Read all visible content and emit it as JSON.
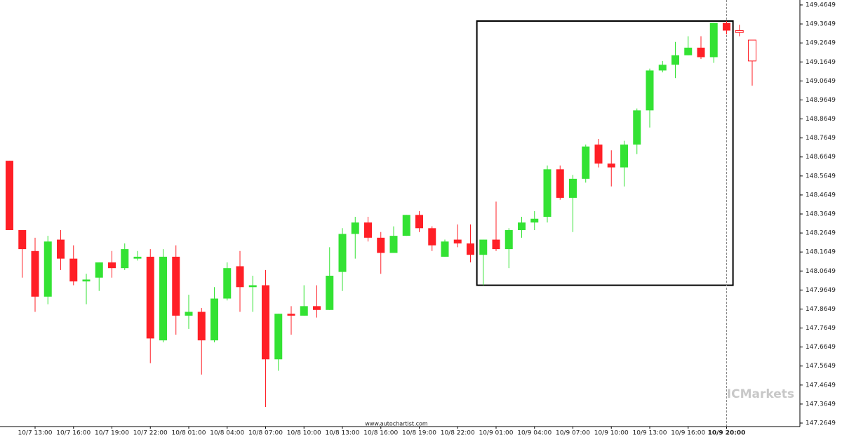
{
  "chart_data": {
    "type": "candlestick",
    "categories": [
      null,
      null,
      "10/7 13:00",
      null,
      null,
      "10/7 16:00",
      null,
      null,
      "10/7 19:00",
      null,
      null,
      "10/7 22:00",
      null,
      null,
      "10/8 01:00",
      null,
      null,
      "10/8 04:00",
      null,
      null,
      "10/8 07:00",
      null,
      null,
      "10/8 10:00",
      null,
      null,
      "10/8 13:00",
      null,
      null,
      "10/8 16:00",
      null,
      null,
      "10/8 19:00",
      null,
      null,
      "10/8 22:00",
      null,
      null,
      "10/9 01:00",
      null,
      null,
      "10/9 04:00",
      null,
      null,
      "10/9 07:00",
      null,
      null,
      "10/9 10:00",
      null,
      null,
      "10/9 13:00",
      null,
      null,
      "10/9 16:00",
      null,
      null,
      "10/9 20:00",
      null,
      null
    ],
    "open": [
      148.645,
      148.28,
      148.17,
      147.93,
      148.23,
      148.13,
      148.01,
      148.03,
      148.11,
      148.08,
      148.13,
      148.14,
      147.7,
      148.14,
      147.83,
      147.85,
      147.7,
      147.92,
      148.09,
      147.98,
      147.99,
      147.6,
      147.84,
      147.83,
      147.88,
      147.86,
      148.06,
      148.26,
      148.32,
      148.24,
      148.16,
      148.25,
      148.36,
      148.29,
      148.14,
      148.23,
      148.21,
      148.15,
      148.23,
      148.18,
      148.28,
      148.32,
      148.35,
      148.6,
      148.45,
      148.55,
      148.73,
      148.63,
      148.61,
      148.73,
      148.91,
      149.12,
      149.15,
      149.2,
      149.24,
      149.19,
      149.37,
      149.33,
      149.28
    ],
    "high": [
      148.645,
      148.28,
      148.24,
      148.25,
      148.28,
      148.2,
      148.05,
      148.11,
      148.17,
      148.21,
      148.17,
      148.18,
      148.18,
      148.2,
      147.94,
      147.87,
      147.98,
      148.11,
      148.17,
      148.04,
      148.07,
      147.84,
      147.88,
      147.99,
      147.99,
      148.19,
      148.29,
      148.35,
      148.35,
      148.27,
      148.3,
      148.36,
      148.38,
      148.3,
      148.23,
      148.31,
      148.31,
      148.23,
      148.43,
      148.29,
      148.35,
      148.38,
      148.62,
      148.62,
      148.57,
      148.73,
      148.76,
      148.7,
      148.75,
      148.92,
      149.13,
      149.17,
      149.27,
      149.3,
      149.3,
      149.37,
      149.38,
      149.36,
      149.28
    ],
    "low": [
      148.28,
      148.03,
      147.85,
      147.89,
      148.07,
      147.99,
      147.89,
      147.96,
      148.03,
      148.07,
      148.12,
      147.58,
      147.69,
      147.73,
      147.76,
      147.52,
      147.69,
      147.91,
      147.85,
      147.85,
      147.35,
      147.54,
      147.73,
      147.83,
      147.82,
      147.86,
      147.96,
      148.13,
      148.22,
      148.05,
      148.16,
      148.25,
      148.27,
      148.17,
      148.14,
      148.19,
      148.11,
      147.99,
      148.17,
      148.08,
      148.24,
      148.28,
      148.32,
      148.44,
      148.27,
      148.53,
      148.61,
      148.51,
      148.51,
      148.68,
      148.82,
      149.11,
      149.08,
      149.2,
      149.18,
      149.16,
      149.31,
      149.3,
      149.04
    ],
    "close": [
      148.28,
      148.18,
      147.93,
      148.22,
      148.13,
      148.01,
      148.02,
      148.11,
      148.08,
      148.18,
      148.14,
      147.71,
      148.14,
      147.83,
      147.85,
      147.7,
      147.92,
      148.08,
      147.98,
      147.99,
      147.6,
      147.84,
      147.83,
      147.88,
      147.86,
      148.04,
      148.26,
      148.32,
      148.24,
      148.16,
      148.25,
      148.36,
      148.29,
      148.2,
      148.22,
      148.21,
      148.15,
      148.23,
      148.18,
      148.28,
      148.32,
      148.34,
      148.6,
      148.45,
      148.55,
      148.72,
      148.63,
      148.61,
      148.73,
      148.91,
      149.12,
      149.15,
      149.2,
      149.24,
      149.19,
      149.37,
      149.33,
      149.32,
      149.17
    ],
    "up_color": "#33e233",
    "down_color": "#ff1f26",
    "ylim": [
      147.2649,
      149.4649
    ],
    "yticks": [
      149.4649,
      149.3649,
      149.2649,
      149.1649,
      149.0649,
      148.9649,
      148.8649,
      148.7649,
      148.6649,
      148.5649,
      148.4649,
      148.3649,
      148.2649,
      148.1649,
      148.0649,
      147.9649,
      147.8649,
      147.7649,
      147.6649,
      147.5649,
      147.4649,
      147.3649,
      147.2649
    ],
    "source": "www.autochartist.com",
    "watermark": "ICMarkets"
  }
}
